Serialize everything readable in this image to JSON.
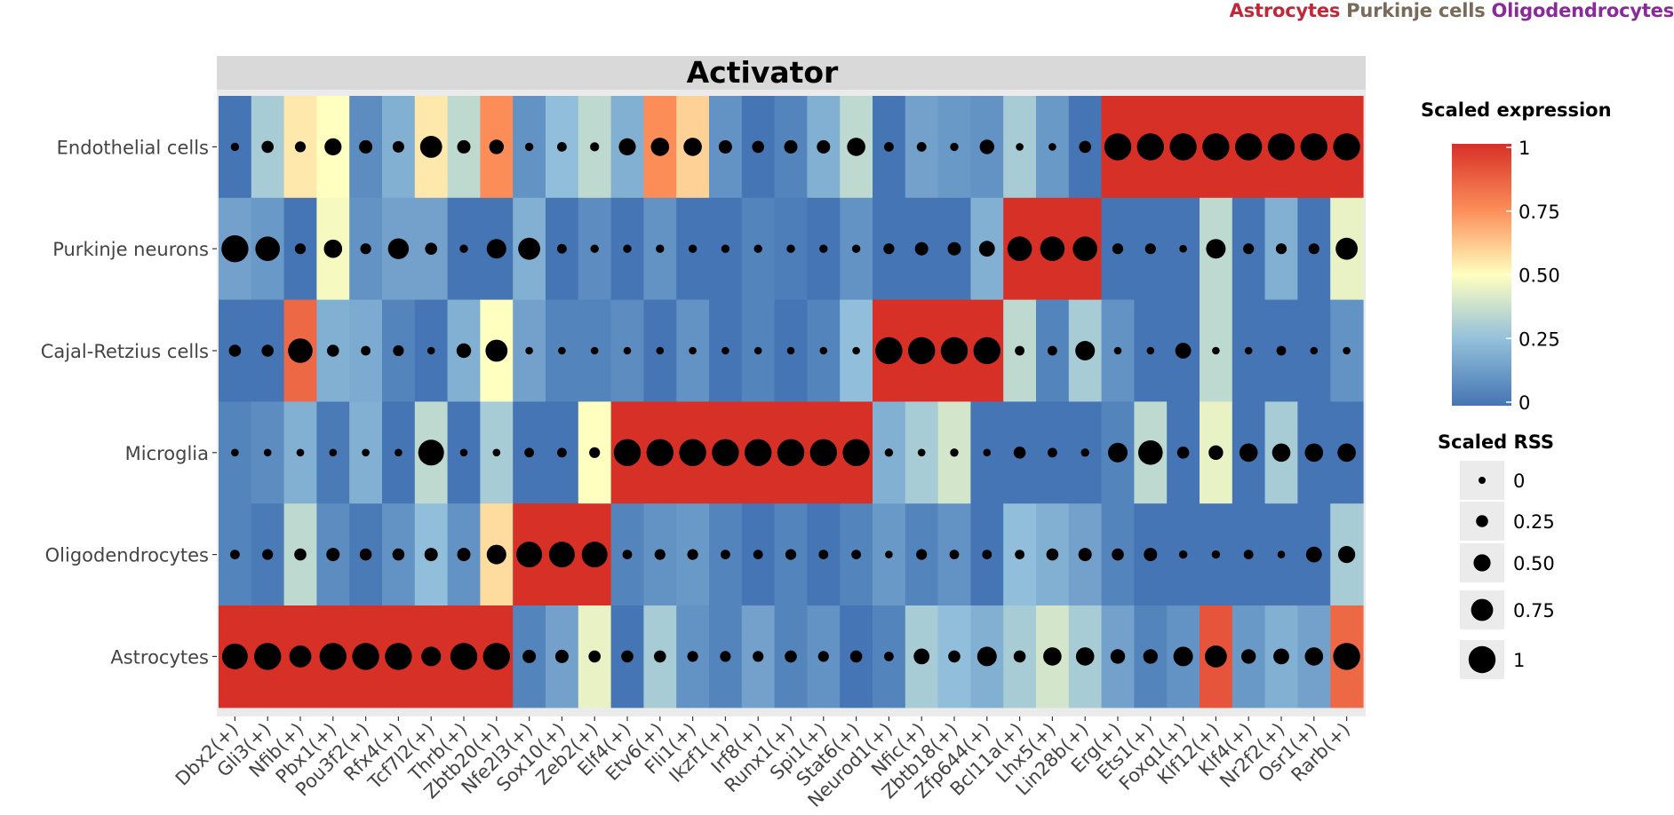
{
  "top_legend": [
    {
      "label": "Astrocytes",
      "color": "#c0283a"
    },
    {
      "label": "Purkinje cells",
      "color": "#7a6a5a"
    },
    {
      "label": "Oligodendrocytes",
      "color": "#8a2a9a"
    }
  ],
  "chart_data": {
    "type": "heatmap",
    "title": "Activator",
    "rows": [
      "Endothelial cells",
      "Purkinje neurons",
      "Cajal-Retzius cells",
      "Microglia",
      "Oligodendrocytes",
      "Astrocytes"
    ],
    "columns": [
      "Dbx2(+)",
      "Gli3(+)",
      "Nfib(+)",
      "Pbx1(+)",
      "Pou3f2(+)",
      "Rfx4(+)",
      "Tcf7l2(+)",
      "Thrb(+)",
      "Zbtb20(+)",
      "Nfe2l3(+)",
      "Sox10(+)",
      "Zeb2(+)",
      "Elf4(+)",
      "Etv6(+)",
      "Fli1(+)",
      "Ikzf1(+)",
      "Irf8(+)",
      "Runx1(+)",
      "Spi1(+)",
      "Stat6(+)",
      "Neurod1(+)",
      "Nfic(+)",
      "Zbtb18(+)",
      "Zfp644(+)",
      "Bcl11a(+)",
      "Lhx5(+)",
      "Lin28b(+)",
      "Erg(+)",
      "Ets1(+)",
      "Foxq1(+)",
      "Klf12(+)",
      "Klf4(+)",
      "Nr2f2(+)",
      "Osr1(+)",
      "Rarb(+)"
    ],
    "expression": [
      [
        0.0,
        0.3,
        0.55,
        0.5,
        0.08,
        0.2,
        0.55,
        0.35,
        0.75,
        0.1,
        0.25,
        0.35,
        0.2,
        0.75,
        0.6,
        0.1,
        0.0,
        0.05,
        0.2,
        0.35,
        0.0,
        0.15,
        0.12,
        0.1,
        0.3,
        0.12,
        0.0,
        1,
        1,
        1,
        1,
        1,
        1,
        1,
        1
      ],
      [
        0.15,
        0.12,
        0.0,
        0.48,
        0.1,
        0.15,
        0.15,
        0.0,
        0.0,
        0.2,
        0.0,
        0.08,
        0.0,
        0.1,
        0.0,
        0.0,
        0.05,
        0.03,
        0.0,
        0.1,
        0.0,
        0.0,
        0.0,
        0.2,
        1,
        1,
        1,
        0.0,
        0.0,
        0.0,
        0.35,
        0.0,
        0.2,
        0.0,
        0.45
      ],
      [
        0.0,
        0.0,
        0.85,
        0.2,
        0.18,
        0.05,
        0.0,
        0.2,
        0.5,
        0.15,
        0.05,
        0.05,
        0.08,
        0.0,
        0.1,
        0.0,
        0.05,
        0.0,
        0.05,
        0.25,
        1,
        1,
        1,
        1,
        0.35,
        0.05,
        0.3,
        0.1,
        0.0,
        0.0,
        0.35,
        0.0,
        0.0,
        0.0,
        0.1
      ],
      [
        0.05,
        0.08,
        0.2,
        0.02,
        0.2,
        0.0,
        0.35,
        0.0,
        0.3,
        0.0,
        0.0,
        0.5,
        1,
        1,
        1,
        1,
        1,
        1,
        1,
        1,
        0.2,
        0.3,
        0.4,
        0.0,
        0.0,
        0.0,
        0.0,
        0.05,
        0.35,
        0.0,
        0.45,
        0.0,
        0.3,
        0.0,
        0.0
      ],
      [
        0.05,
        0.02,
        0.35,
        0.08,
        0.02,
        0.1,
        0.25,
        0.1,
        0.58,
        1,
        1,
        1,
        0.05,
        0.1,
        0.12,
        0.05,
        0.0,
        0.05,
        0.0,
        0.05,
        0.12,
        0.05,
        0.1,
        0.0,
        0.25,
        0.2,
        0.15,
        0.05,
        0.0,
        0.0,
        0.0,
        0.0,
        0.0,
        0.0,
        0.3
      ],
      [
        1,
        1,
        1,
        1,
        1,
        1,
        1,
        1,
        1,
        0.05,
        0.15,
        0.45,
        0.0,
        0.3,
        0.1,
        0.05,
        0.15,
        0.05,
        0.1,
        0.0,
        0.05,
        0.3,
        0.25,
        0.2,
        0.3,
        0.4,
        0.3,
        0.15,
        0.05,
        0.1,
        0.9,
        0.12,
        0.2,
        0.15,
        0.85
      ]
    ],
    "rss": [
      [
        0.05,
        0.2,
        0.15,
        0.4,
        0.25,
        0.18,
        0.6,
        0.25,
        0.3,
        0.05,
        0.1,
        0.08,
        0.4,
        0.45,
        0.45,
        0.25,
        0.2,
        0.25,
        0.25,
        0.45,
        0.1,
        0.1,
        0.05,
        0.3,
        0.02,
        0.02,
        0.2,
        0.8,
        0.8,
        0.8,
        0.8,
        0.8,
        0.8,
        0.8,
        0.8
      ],
      [
        0.8,
        0.7,
        0.15,
        0.45,
        0.15,
        0.55,
        0.2,
        0.05,
        0.5,
        0.6,
        0.1,
        0.05,
        0.05,
        0.05,
        0.05,
        0.05,
        0.05,
        0.05,
        0.05,
        0.05,
        0.15,
        0.25,
        0.25,
        0.35,
        0.7,
        0.7,
        0.7,
        0.15,
        0.15,
        0.02,
        0.5,
        0.15,
        0.15,
        0.15,
        0.6
      ],
      [
        0.2,
        0.2,
        0.7,
        0.2,
        0.1,
        0.15,
        0.02,
        0.3,
        0.6,
        0.02,
        0.02,
        0.02,
        0.02,
        0.02,
        0.02,
        0.02,
        0.02,
        0.02,
        0.02,
        0.02,
        0.8,
        0.8,
        0.8,
        0.8,
        0.1,
        0.1,
        0.5,
        0.02,
        0.02,
        0.35,
        0.02,
        0.02,
        0.1,
        0.02,
        0.02
      ],
      [
        0.02,
        0.02,
        0.02,
        0.02,
        0.02,
        0.02,
        0.75,
        0.02,
        0.02,
        0.1,
        0.1,
        0.15,
        0.8,
        0.8,
        0.8,
        0.8,
        0.8,
        0.8,
        0.8,
        0.8,
        0.05,
        0.02,
        0.05,
        0.02,
        0.2,
        0.1,
        0.05,
        0.5,
        0.7,
        0.2,
        0.3,
        0.45,
        0.45,
        0.45,
        0.45
      ],
      [
        0.1,
        0.15,
        0.2,
        0.25,
        0.2,
        0.2,
        0.25,
        0.25,
        0.5,
        0.75,
        0.75,
        0.75,
        0.1,
        0.15,
        0.15,
        0.1,
        0.1,
        0.15,
        0.1,
        0.1,
        0.02,
        0.15,
        0.1,
        0.1,
        0.1,
        0.2,
        0.25,
        0.2,
        0.25,
        0.05,
        0.05,
        0.1,
        0.02,
        0.35,
        0.4
      ],
      [
        0.75,
        0.8,
        0.6,
        0.8,
        0.8,
        0.8,
        0.5,
        0.8,
        0.8,
        0.25,
        0.25,
        0.2,
        0.2,
        0.2,
        0.15,
        0.15,
        0.15,
        0.2,
        0.15,
        0.2,
        0.1,
        0.35,
        0.2,
        0.5,
        0.2,
        0.45,
        0.45,
        0.3,
        0.3,
        0.5,
        0.6,
        0.3,
        0.35,
        0.45,
        0.8
      ]
    ],
    "color_legend": {
      "title": "Scaled expression",
      "ticks": [
        "1",
        "0.75",
        "0.50",
        "0.25",
        "0"
      ],
      "low_color": "#4575b4",
      "mid_color": "#ffffbf",
      "high_color": "#d73027"
    },
    "size_legend": {
      "title": "Scaled RSS",
      "labels": [
        "0",
        "0.25",
        "0.50",
        "0.75",
        "1"
      ],
      "values": [
        0,
        0.25,
        0.5,
        0.75,
        1
      ]
    }
  }
}
